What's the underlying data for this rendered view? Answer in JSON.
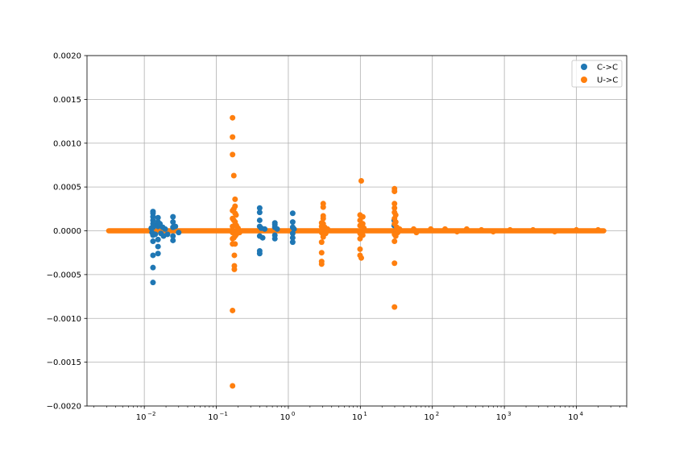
{
  "chart_data": {
    "type": "scatter",
    "title": "",
    "xlabel": "",
    "ylabel": "",
    "x_scale": "log",
    "xlim": [
      0.0016,
      50000
    ],
    "ylim": [
      -0.002,
      0.002
    ],
    "grid": true,
    "legend_position": "top-right",
    "y_ticks": [
      "−0.0020",
      "−0.0015",
      "−0.0010",
      "−0.0005",
      "0.0000",
      "0.0005",
      "0.0010",
      "0.0015",
      "0.0020"
    ],
    "y_tick_values": [
      -0.002,
      -0.0015,
      -0.001,
      -0.0005,
      0,
      0.0005,
      0.001,
      0.0015,
      0.002
    ],
    "x_ticks": [
      {
        "value": 0.01,
        "base": "10",
        "exp": "−2"
      },
      {
        "value": 0.1,
        "base": "10",
        "exp": "−1"
      },
      {
        "value": 1,
        "base": "10",
        "exp": "0"
      },
      {
        "value": 10,
        "base": "10",
        "exp": "1"
      },
      {
        "value": 100,
        "base": "10",
        "exp": "2"
      },
      {
        "value": 1000,
        "base": "10",
        "exp": "3"
      },
      {
        "value": 10000,
        "base": "10",
        "exp": "4"
      }
    ],
    "baseline_range": [
      0.0032,
      24000
    ],
    "series": [
      {
        "name": "C->C",
        "color": "#1f77b4",
        "points": [
          [
            0.0132,
            0.00022
          ],
          [
            0.0132,
            0.0002
          ],
          [
            0.0132,
            0.00016
          ],
          [
            0.0132,
            0.00012
          ],
          [
            0.0132,
            8e-05
          ],
          [
            0.0132,
            4e-05
          ],
          [
            0.0132,
            -5e-05
          ],
          [
            0.0132,
            -0.00012
          ],
          [
            0.0132,
            -0.00028
          ],
          [
            0.0132,
            -0.00042
          ],
          [
            0.0132,
            -0.00059
          ],
          [
            0.0125,
            3e-05
          ],
          [
            0.0128,
            -2e-05
          ],
          [
            0.0138,
            6e-05
          ],
          [
            0.0142,
            -4e-05
          ],
          [
            0.0155,
            0.00015
          ],
          [
            0.0155,
            0.0001
          ],
          [
            0.0155,
            5e-05
          ],
          [
            0.0155,
            -0.0001
          ],
          [
            0.0155,
            -0.00018
          ],
          [
            0.0155,
            -0.00026
          ],
          [
            0.0165,
            8e-05
          ],
          [
            0.017,
            -3e-05
          ],
          [
            0.018,
            4e-05
          ],
          [
            0.0185,
            -6e-05
          ],
          [
            0.0195,
            2e-05
          ],
          [
            0.021,
            -4e-05
          ],
          [
            0.025,
            0.00016
          ],
          [
            0.025,
            0.0001
          ],
          [
            0.025,
            4e-05
          ],
          [
            0.025,
            -6e-05
          ],
          [
            0.025,
            -0.00011
          ],
          [
            0.027,
            5e-05
          ],
          [
            0.03,
            -2e-05
          ],
          [
            0.4,
            0.00026
          ],
          [
            0.4,
            0.00021
          ],
          [
            0.4,
            0.00012
          ],
          [
            0.4,
            5e-05
          ],
          [
            0.4,
            -6e-05
          ],
          [
            0.4,
            -0.00023
          ],
          [
            0.4,
            -0.00026
          ],
          [
            0.42,
            3e-05
          ],
          [
            0.44,
            -8e-05
          ],
          [
            0.47,
            2e-05
          ],
          [
            0.65,
            9e-05
          ],
          [
            0.65,
            7e-05
          ],
          [
            0.65,
            4e-05
          ],
          [
            0.65,
            -5e-05
          ],
          [
            0.65,
            -9e-05
          ],
          [
            0.7,
            2e-05
          ],
          [
            1.15,
            0.0002
          ],
          [
            1.15,
            0.0001
          ],
          [
            1.15,
            4e-05
          ],
          [
            1.15,
            -3e-05
          ],
          [
            1.15,
            -8e-05
          ],
          [
            1.15,
            -0.00013
          ],
          [
            1.2,
            2e-05
          ],
          [
            29.5,
            0.00012
          ],
          [
            29.5,
            6e-05
          ],
          [
            30,
            -4e-05
          ]
        ]
      },
      {
        "name": "U->C",
        "color": "#ff7f0e",
        "points": [
          [
            0.168,
            0.00129
          ],
          [
            0.168,
            0.00107
          ],
          [
            0.168,
            0.00087
          ],
          [
            0.168,
            0.00023
          ],
          [
            0.168,
            0.00014
          ],
          [
            0.168,
            5e-05
          ],
          [
            0.168,
            -2e-05
          ],
          [
            0.168,
            -9e-05
          ],
          [
            0.168,
            -0.00015
          ],
          [
            0.168,
            -0.00091
          ],
          [
            0.168,
            -0.00177
          ],
          [
            0.175,
            0.00063
          ],
          [
            0.175,
            0.00025
          ],
          [
            0.175,
            0.00012
          ],
          [
            0.175,
            -8e-05
          ],
          [
            0.178,
            -0.0004
          ],
          [
            0.178,
            -0.00044
          ],
          [
            0.178,
            -0.00028
          ],
          [
            0.182,
            0.00036
          ],
          [
            0.182,
            0.00028
          ],
          [
            0.182,
            0.0002
          ],
          [
            0.182,
            0.0001
          ],
          [
            0.182,
            -6e-05
          ],
          [
            0.182,
            -0.00015
          ],
          [
            0.188,
            0.00018
          ],
          [
            0.19,
            6e-05
          ],
          [
            0.19,
            -4e-05
          ],
          [
            0.2,
            3e-05
          ],
          [
            0.21,
            -2e-05
          ],
          [
            2.9,
            9e-05
          ],
          [
            2.9,
            5e-05
          ],
          [
            2.9,
            -2e-05
          ],
          [
            2.9,
            -0.00013
          ],
          [
            2.9,
            -0.00025
          ],
          [
            2.9,
            -0.00035
          ],
          [
            2.9,
            -0.00038
          ],
          [
            3.05,
            0.00031
          ],
          [
            3.05,
            0.00027
          ],
          [
            3.05,
            0.00017
          ],
          [
            3.05,
            0.00014
          ],
          [
            3.05,
            8e-05
          ],
          [
            3.05,
            -4e-05
          ],
          [
            3.05,
            -7e-05
          ],
          [
            3.2,
            4e-05
          ],
          [
            3.3,
            -3e-05
          ],
          [
            3.5,
            2e-05
          ],
          [
            9.9,
            0.00018
          ],
          [
            9.9,
            0.00012
          ],
          [
            9.9,
            6e-05
          ],
          [
            9.9,
            -3e-05
          ],
          [
            9.9,
            -9e-05
          ],
          [
            9.9,
            -0.00021
          ],
          [
            9.9,
            -0.00028
          ],
          [
            10.3,
            0.00057
          ],
          [
            10.3,
            -0.00031
          ],
          [
            10.8,
            0.00016
          ],
          [
            10.8,
            8e-05
          ],
          [
            10.8,
            -5e-05
          ],
          [
            11.2,
            3e-05
          ],
          [
            29.8,
            0.00048
          ],
          [
            29.8,
            0.00045
          ],
          [
            29.8,
            0.00031
          ],
          [
            29.8,
            0.00026
          ],
          [
            29.8,
            0.00021
          ],
          [
            29.8,
            0.00014
          ],
          [
            29.8,
            8e-05
          ],
          [
            29.8,
            -4e-05
          ],
          [
            29.8,
            -0.00012
          ],
          [
            29.8,
            -0.00037
          ],
          [
            29.8,
            -0.00087
          ],
          [
            31,
            0.00018
          ],
          [
            31,
            0.0001
          ],
          [
            31,
            -6e-05
          ],
          [
            32,
            4e-05
          ],
          [
            33,
            -2e-05
          ],
          [
            35,
            2e-05
          ],
          [
            55,
            2e-05
          ],
          [
            60,
            -2e-05
          ],
          [
            95,
            2e-05
          ],
          [
            150,
            2e-05
          ],
          [
            220,
            -1e-05
          ],
          [
            300,
            2e-05
          ],
          [
            480,
            1e-05
          ],
          [
            700,
            -1e-05
          ],
          [
            1200,
            1e-05
          ],
          [
            2500,
            1e-05
          ],
          [
            5000,
            -1e-05
          ],
          [
            10000,
            1e-05
          ],
          [
            20000,
            1e-05
          ]
        ]
      }
    ]
  }
}
